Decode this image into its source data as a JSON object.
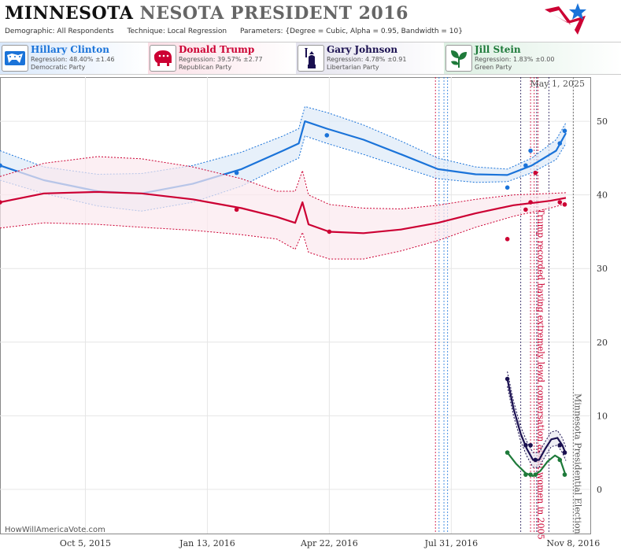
{
  "header": {
    "title_bold": "MINNESOTA",
    "title_rest": "NESOTA PRESIDENT 2016",
    "demographic": "Demographic: All Respondents",
    "technique": "Technique: Local Regression",
    "parameters": "Parameters: {Degree = Cubic, Alpha = 0.95, Bandwidth = 10}"
  },
  "candidates": [
    {
      "name": "Hillary Clinton",
      "regression": "Regression: 48.40% ±1.46",
      "party": "Democratic Party",
      "color": "#1a73d9",
      "bg": "#e3effc",
      "icon": "donkey-icon"
    },
    {
      "name": "Donald Trump",
      "regression": "Regression: 39.57% ±2.77",
      "party": "Republican Party",
      "color": "#cc0033",
      "bg": "#fbe4ea",
      "icon": "elephant-icon"
    },
    {
      "name": "Gary Johnson",
      "regression": "Regression: 4.78% ±0.91",
      "party": "Libertarian Party",
      "color": "#1a1050",
      "bg": "#ebeaf2",
      "icon": "liberty-statue-icon"
    },
    {
      "name": "Jill Stein",
      "regression": "Regression: 1.83% ±0.00",
      "party": "Green Party",
      "color": "#1e7a3a",
      "bg": "#e4f2e8",
      "icon": "leaf-icon"
    }
  ],
  "watermark": "HowWillAmericaVote.com",
  "date_label": "May 1, 2025",
  "chart_data": {
    "type": "line",
    "x_tick_labels": [
      "Oct 5, 2015",
      "Jan 13, 2016",
      "Apr 22, 2016",
      "Jul 31, 2016",
      "Nov 8, 2016"
    ],
    "xlim": [
      "2015-07-27",
      "2016-11-22"
    ],
    "ylim": [
      -6,
      56
    ],
    "y_ticks": [
      0,
      10,
      20,
      30,
      40,
      50
    ],
    "annotations": [
      {
        "text": "Trump recorded having extremely lewd conversation about women in 2005",
        "date": "2016-10-07"
      },
      {
        "text": "Minnesota Presidential Election",
        "date": "2016-11-08"
      }
    ],
    "series": [
      {
        "name": "Hillary Clinton",
        "color": "#1a73d9",
        "fill": "#dde9f8",
        "line": [
          [
            "2015-07-27",
            44
          ],
          [
            "2015-09-01",
            42
          ],
          [
            "2015-10-15",
            40.5
          ],
          [
            "2015-11-20",
            40.2
          ],
          [
            "2016-01-01",
            41.5
          ],
          [
            "2016-02-10",
            43.5
          ],
          [
            "2016-03-15",
            46
          ],
          [
            "2016-03-28",
            47
          ],
          [
            "2016-04-02",
            50
          ],
          [
            "2016-04-20",
            49
          ],
          [
            "2016-05-20",
            47.5
          ],
          [
            "2016-06-20",
            45.5
          ],
          [
            "2016-07-20",
            43.5
          ],
          [
            "2016-08-20",
            42.8
          ],
          [
            "2016-09-15",
            42.7
          ],
          [
            "2016-10-05",
            44
          ],
          [
            "2016-10-25",
            46
          ],
          [
            "2016-11-02",
            48.4
          ]
        ],
        "upper": [
          [
            "2015-07-27",
            46
          ],
          [
            "2015-09-01",
            43.8
          ],
          [
            "2015-10-15",
            42.8
          ],
          [
            "2015-11-20",
            42.9
          ],
          [
            "2016-01-01",
            44
          ],
          [
            "2016-02-10",
            45.8
          ],
          [
            "2016-03-15",
            48
          ],
          [
            "2016-03-28",
            49
          ],
          [
            "2016-04-02",
            52
          ],
          [
            "2016-04-20",
            51.2
          ],
          [
            "2016-05-20",
            49.5
          ],
          [
            "2016-06-20",
            47.3
          ],
          [
            "2016-07-20",
            45
          ],
          [
            "2016-08-20",
            43.8
          ],
          [
            "2016-09-15",
            43.5
          ],
          [
            "2016-10-05",
            45
          ],
          [
            "2016-10-25",
            47.5
          ],
          [
            "2016-11-02",
            49.8
          ]
        ],
        "lower": [
          [
            "2015-07-27",
            42
          ],
          [
            "2015-09-01",
            40.2
          ],
          [
            "2015-10-15",
            38.5
          ],
          [
            "2015-11-20",
            37.8
          ],
          [
            "2016-01-01",
            39
          ],
          [
            "2016-02-10",
            41.2
          ],
          [
            "2016-03-15",
            44
          ],
          [
            "2016-03-28",
            45
          ],
          [
            "2016-04-02",
            48
          ],
          [
            "2016-04-20",
            47
          ],
          [
            "2016-05-20",
            45.5
          ],
          [
            "2016-06-20",
            43.8
          ],
          [
            "2016-07-20",
            42.2
          ],
          [
            "2016-08-20",
            41.7
          ],
          [
            "2016-09-15",
            41.8
          ],
          [
            "2016-10-05",
            43
          ],
          [
            "2016-10-25",
            44.8
          ],
          [
            "2016-11-02",
            47
          ]
        ],
        "points": [
          [
            "2015-07-27",
            44
          ],
          [
            "2016-02-06",
            43
          ],
          [
            "2016-04-20",
            48.1
          ],
          [
            "2016-09-15",
            41
          ],
          [
            "2016-09-30",
            44
          ],
          [
            "2016-10-04",
            46
          ],
          [
            "2016-10-28",
            47
          ],
          [
            "2016-11-01",
            48.7
          ]
        ]
      },
      {
        "name": "Donald Trump",
        "color": "#cc0033",
        "fill": "#fbe8ee",
        "line": [
          [
            "2015-07-27",
            39
          ],
          [
            "2015-09-01",
            40.2
          ],
          [
            "2015-10-15",
            40.4
          ],
          [
            "2015-11-20",
            40.2
          ],
          [
            "2016-01-01",
            39.4
          ],
          [
            "2016-02-10",
            38.2
          ],
          [
            "2016-03-10",
            37
          ],
          [
            "2016-03-25",
            36.2
          ],
          [
            "2016-03-31",
            39
          ],
          [
            "2016-04-05",
            36
          ],
          [
            "2016-04-22",
            35
          ],
          [
            "2016-05-20",
            34.8
          ],
          [
            "2016-06-20",
            35.3
          ],
          [
            "2016-07-20",
            36.2
          ],
          [
            "2016-08-20",
            37.5
          ],
          [
            "2016-09-20",
            38.6
          ],
          [
            "2016-10-20",
            39.2
          ],
          [
            "2016-11-02",
            39.6
          ]
        ],
        "upper": [
          [
            "2015-07-27",
            42.5
          ],
          [
            "2015-09-01",
            44.3
          ],
          [
            "2015-10-15",
            45.2
          ],
          [
            "2015-11-20",
            44.9
          ],
          [
            "2016-01-01",
            43.8
          ],
          [
            "2016-02-10",
            42.2
          ],
          [
            "2016-03-10",
            40.5
          ],
          [
            "2016-03-25",
            40.5
          ],
          [
            "2016-03-31",
            43.3
          ],
          [
            "2016-04-05",
            40
          ],
          [
            "2016-04-22",
            38.7
          ],
          [
            "2016-05-20",
            38.2
          ],
          [
            "2016-06-20",
            38.1
          ],
          [
            "2016-07-20",
            38.6
          ],
          [
            "2016-08-20",
            39.4
          ],
          [
            "2016-09-20",
            40
          ],
          [
            "2016-10-20",
            40.2
          ],
          [
            "2016-11-02",
            40.3
          ]
        ],
        "lower": [
          [
            "2015-07-27",
            35.5
          ],
          [
            "2015-09-01",
            36.2
          ],
          [
            "2015-10-15",
            36
          ],
          [
            "2015-11-20",
            35.6
          ],
          [
            "2016-01-01",
            35.2
          ],
          [
            "2016-02-10",
            34.6
          ],
          [
            "2016-03-10",
            34
          ],
          [
            "2016-03-25",
            32.6
          ],
          [
            "2016-03-31",
            34.9
          ],
          [
            "2016-04-05",
            32.2
          ],
          [
            "2016-04-22",
            31.3
          ],
          [
            "2016-05-20",
            31.3
          ],
          [
            "2016-06-20",
            32.4
          ],
          [
            "2016-07-20",
            33.8
          ],
          [
            "2016-08-20",
            35.6
          ],
          [
            "2016-09-20",
            37.1
          ],
          [
            "2016-10-20",
            38.2
          ],
          [
            "2016-11-02",
            38.8
          ]
        ],
        "points": [
          [
            "2015-07-27",
            39
          ],
          [
            "2016-02-06",
            38
          ],
          [
            "2016-04-22",
            35
          ],
          [
            "2016-09-15",
            34
          ],
          [
            "2016-09-30",
            38
          ],
          [
            "2016-10-04",
            39
          ],
          [
            "2016-10-08",
            43
          ],
          [
            "2016-10-28",
            39
          ],
          [
            "2016-11-01",
            38.7
          ]
        ]
      },
      {
        "name": "Gary Johnson",
        "color": "#1a1050",
        "fill": "#e8e7f0",
        "line": [
          [
            "2016-09-15",
            15
          ],
          [
            "2016-09-20",
            11
          ],
          [
            "2016-09-26",
            7.5
          ],
          [
            "2016-10-01",
            5.5
          ],
          [
            "2016-10-06",
            4
          ],
          [
            "2016-10-11",
            4
          ],
          [
            "2016-10-16",
            5.5
          ],
          [
            "2016-10-21",
            6.8
          ],
          [
            "2016-10-26",
            7
          ],
          [
            "2016-10-30",
            6
          ],
          [
            "2016-11-02",
            4.8
          ]
        ],
        "upper": [
          [
            "2016-09-15",
            16
          ],
          [
            "2016-09-20",
            12
          ],
          [
            "2016-09-26",
            8.5
          ],
          [
            "2016-10-01",
            6.5
          ],
          [
            "2016-10-06",
            5
          ],
          [
            "2016-10-11",
            5
          ],
          [
            "2016-10-16",
            6.5
          ],
          [
            "2016-10-21",
            7.8
          ],
          [
            "2016-10-26",
            8
          ],
          [
            "2016-10-30",
            7
          ],
          [
            "2016-11-02",
            5.7
          ]
        ],
        "lower": [
          [
            "2016-09-15",
            14
          ],
          [
            "2016-09-20",
            10
          ],
          [
            "2016-09-26",
            6.5
          ],
          [
            "2016-10-01",
            4.5
          ],
          [
            "2016-10-06",
            3
          ],
          [
            "2016-10-11",
            3
          ],
          [
            "2016-10-16",
            4.5
          ],
          [
            "2016-10-21",
            5.8
          ],
          [
            "2016-10-26",
            6
          ],
          [
            "2016-10-30",
            5
          ],
          [
            "2016-11-02",
            3.9
          ]
        ],
        "points": [
          [
            "2016-09-15",
            15
          ],
          [
            "2016-09-30",
            6
          ],
          [
            "2016-10-04",
            6
          ],
          [
            "2016-10-08",
            4
          ],
          [
            "2016-10-28",
            6
          ],
          [
            "2016-11-01",
            5
          ]
        ]
      },
      {
        "name": "Jill Stein",
        "color": "#1e7a3a",
        "line": [
          [
            "2016-09-15",
            5
          ],
          [
            "2016-09-22",
            3.5
          ],
          [
            "2016-09-30",
            2.2
          ],
          [
            "2016-10-06",
            1.8
          ],
          [
            "2016-10-12",
            2.5
          ],
          [
            "2016-10-18",
            3.8
          ],
          [
            "2016-10-24",
            4.6
          ],
          [
            "2016-10-28",
            4.2
          ],
          [
            "2016-11-02",
            1.8
          ]
        ],
        "points": [
          [
            "2016-09-15",
            5
          ],
          [
            "2016-09-30",
            2
          ],
          [
            "2016-10-04",
            2
          ],
          [
            "2016-10-08",
            2
          ],
          [
            "2016-10-28",
            4
          ],
          [
            "2016-11-01",
            2
          ]
        ]
      }
    ],
    "vlines": [
      {
        "date": "2016-07-18",
        "color": "#cc0033"
      },
      {
        "date": "2016-07-21",
        "color": "#1a73d9"
      },
      {
        "date": "2016-07-25",
        "color": "#1a73d9"
      },
      {
        "date": "2016-07-28",
        "color": "#1a73d9"
      },
      {
        "date": "2016-09-26",
        "color": "#1a1050"
      },
      {
        "date": "2016-10-04",
        "color": "#cc0033"
      },
      {
        "date": "2016-10-07",
        "color": "#cc0033"
      },
      {
        "date": "2016-10-09",
        "color": "#1a1050"
      },
      {
        "date": "2016-10-10",
        "color": "#cc0033"
      },
      {
        "date": "2016-10-19",
        "color": "#1a1050"
      },
      {
        "date": "2016-11-08",
        "color": "#555555"
      }
    ]
  }
}
